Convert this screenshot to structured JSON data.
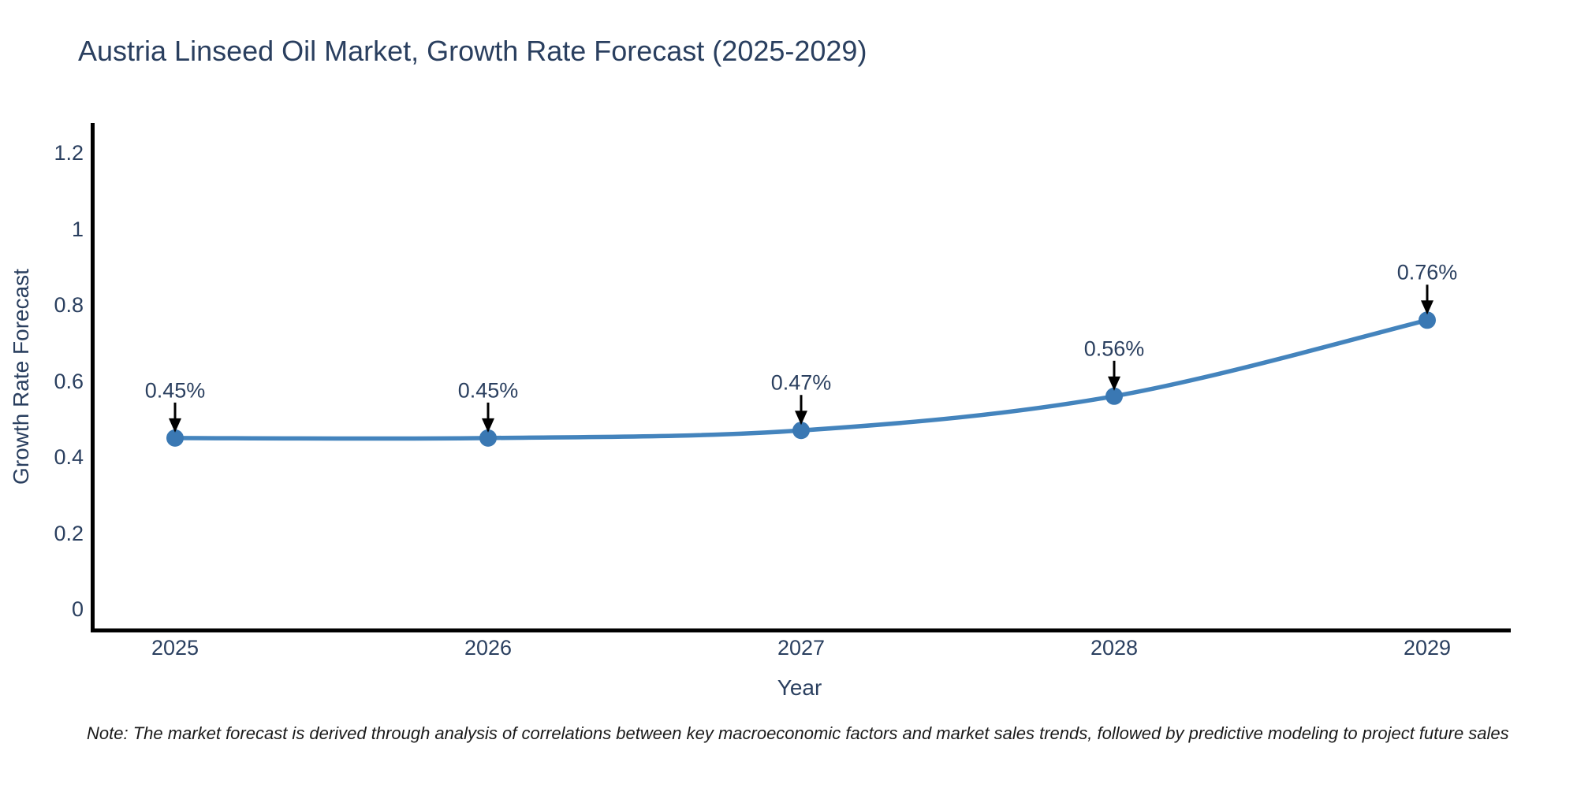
{
  "title": "Austria Linseed Oil Market, Growth Rate Forecast (2025-2029)",
  "note": "Note: The market forecast is derived through analysis of correlations between key macroeconomic factors and market sales trends, followed by predictive modeling to project future sales",
  "chart_data": {
    "type": "line",
    "title": "Austria Linseed Oil Market, Growth Rate Forecast (2025-2029)",
    "xlabel": "Year",
    "ylabel": "Growth Rate Forecast",
    "x": [
      2025,
      2026,
      2027,
      2028,
      2029
    ],
    "series": [
      {
        "name": "Growth Rate Forecast",
        "values": [
          0.45,
          0.45,
          0.47,
          0.56,
          0.76
        ]
      }
    ],
    "point_labels": [
      "0.45%",
      "0.45%",
      "0.47%",
      "0.56%",
      "0.76%"
    ],
    "yticks": [
      0,
      0.2,
      0.4,
      0.6,
      0.8,
      1,
      1.2
    ],
    "ytick_labels": [
      "0",
      "0.2",
      "0.4",
      "0.6",
      "0.8",
      "1",
      "1.2"
    ],
    "xtick_labels": [
      "2025",
      "2026",
      "2027",
      "2028",
      "2029"
    ],
    "ylim": [
      0,
      1.2
    ],
    "grid": false,
    "legend": "none",
    "curve": "spline",
    "annotations_arrow": "down",
    "colors": {
      "line": "#4484bd",
      "marker": "#3a78b3",
      "axis": "#000000",
      "text": "#2a3f5f",
      "arrow": "#000000",
      "note_text": "#1a1a1a",
      "background": "#ffffff"
    }
  }
}
